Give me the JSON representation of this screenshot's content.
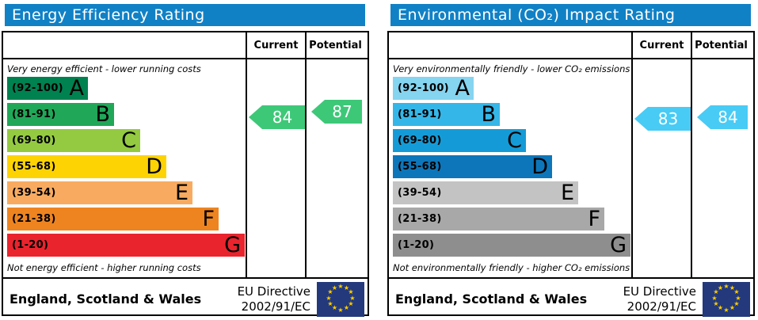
{
  "colors": {
    "header_bg": "#1181c6",
    "eu_flag_bg": "#23397c",
    "eu_star": "#ffcc00"
  },
  "panels": [
    {
      "title": "Energy Efficiency Rating",
      "columns": {
        "current": "Current",
        "potential": "Potential"
      },
      "top_caption": "Very energy efficient - lower running costs",
      "bottom_caption": "Not energy efficient - higher running costs",
      "bands": [
        {
          "letter": "A",
          "range": "(92-100)",
          "color": "#008150"
        },
        {
          "letter": "B",
          "range": "(81-91)",
          "color": "#20a758"
        },
        {
          "letter": "C",
          "range": "(69-80)",
          "color": "#94ca41"
        },
        {
          "letter": "D",
          "range": "(55-68)",
          "color": "#fed304"
        },
        {
          "letter": "E",
          "range": "(39-54)",
          "color": "#f8ab60"
        },
        {
          "letter": "F",
          "range": "(21-38)",
          "color": "#ee8420"
        },
        {
          "letter": "G",
          "range": "(1-20)",
          "color": "#e9242d"
        }
      ],
      "current_value": 84,
      "potential_value": 87,
      "arrow_color": "#3dc878",
      "footer": {
        "region": "England, Scotland & Wales",
        "directive_line1": "EU Directive",
        "directive_line2": "2002/91/EC"
      }
    },
    {
      "title": "Environmental (CO₂) Impact Rating",
      "columns": {
        "current": "Current",
        "potential": "Potential"
      },
      "top_caption": "Very environmentally friendly - lower CO₂ emissions",
      "bottom_caption": "Not environmentally friendly - higher CO₂ emissions",
      "bands": [
        {
          "letter": "A",
          "range": "(92-100)",
          "color": "#85d4f0"
        },
        {
          "letter": "B",
          "range": "(81-91)",
          "color": "#35b6e8"
        },
        {
          "letter": "C",
          "range": "(69-80)",
          "color": "#149bd7"
        },
        {
          "letter": "D",
          "range": "(55-68)",
          "color": "#0d76ba"
        },
        {
          "letter": "E",
          "range": "(39-54)",
          "color": "#c3c3c3"
        },
        {
          "letter": "F",
          "range": "(21-38)",
          "color": "#a8a8a8"
        },
        {
          "letter": "G",
          "range": "(1-20)",
          "color": "#8e8e8e"
        }
      ],
      "current_value": 83,
      "potential_value": 84,
      "arrow_color": "#48cbf5",
      "footer": {
        "region": "England, Scotland & Wales",
        "directive_line1": "EU Directive",
        "directive_line2": "2002/91/EC"
      }
    }
  ],
  "chart_data": [
    {
      "type": "bar",
      "title": "Energy Efficiency Rating",
      "annotation_top": "Very energy efficient - lower running costs",
      "annotation_bottom": "Not energy efficient - higher running costs",
      "categories": [
        "A (92-100)",
        "B (81-91)",
        "C (69-80)",
        "D (55-68)",
        "E (39-54)",
        "F (21-38)",
        "G (1-20)"
      ],
      "band_colors": [
        "#008150",
        "#20a758",
        "#94ca41",
        "#fed304",
        "#f8ab60",
        "#ee8420",
        "#e9242d"
      ],
      "series": [
        {
          "name": "Current",
          "values": [
            84
          ],
          "band": "B"
        },
        {
          "name": "Potential",
          "values": [
            87
          ],
          "band": "B"
        }
      ],
      "scale_range": [
        1,
        100
      ],
      "legend_position": "top-right-columns",
      "footer": "England, Scotland & Wales — EU Directive 2002/91/EC"
    },
    {
      "type": "bar",
      "title": "Environmental (CO₂) Impact Rating",
      "annotation_top": "Very environmentally friendly - lower CO₂ emissions",
      "annotation_bottom": "Not environmentally friendly - higher CO₂ emissions",
      "categories": [
        "A (92-100)",
        "B (81-91)",
        "C (69-80)",
        "D (55-68)",
        "E (39-54)",
        "F (21-38)",
        "G (1-20)"
      ],
      "band_colors": [
        "#85d4f0",
        "#35b6e8",
        "#149bd7",
        "#0d76ba",
        "#c3c3c3",
        "#a8a8a8",
        "#8e8e8e"
      ],
      "series": [
        {
          "name": "Current",
          "values": [
            83
          ],
          "band": "B"
        },
        {
          "name": "Potential",
          "values": [
            84
          ],
          "band": "B"
        }
      ],
      "scale_range": [
        1,
        100
      ],
      "legend_position": "top-right-columns",
      "footer": "England, Scotland & Wales — EU Directive 2002/91/EC"
    }
  ]
}
